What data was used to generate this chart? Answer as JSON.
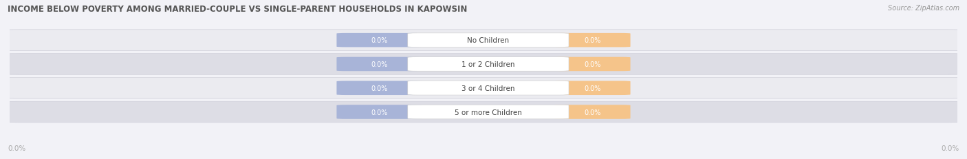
{
  "title": "INCOME BELOW POVERTY AMONG MARRIED-COUPLE VS SINGLE-PARENT HOUSEHOLDS IN KAPOWSIN",
  "source": "Source: ZipAtlas.com",
  "categories": [
    "No Children",
    "1 or 2 Children",
    "3 or 4 Children",
    "5 or more Children"
  ],
  "married_values": [
    "0.0%",
    "0.0%",
    "0.0%",
    "0.0%"
  ],
  "single_values": [
    "0.0%",
    "0.0%",
    "0.0%",
    "0.0%"
  ],
  "married_color": "#a8b4d8",
  "single_color": "#f5c48a",
  "row_bg_light": "#ebebf0",
  "row_bg_dark": "#dddde5",
  "row_outline": "#d0d0da",
  "fig_bg": "#f2f2f7",
  "title_color": "#555555",
  "source_color": "#999999",
  "value_text_color": "#ffffff",
  "category_text_color": "#444444",
  "axis_text_color": "#aaaaaa",
  "legend_text_color": "#555555",
  "title_fontsize": 8.5,
  "source_fontsize": 7.0,
  "category_fontsize": 7.5,
  "value_fontsize": 7.0,
  "legend_fontsize": 7.5,
  "axis_label_fontsize": 7.5,
  "x_tick_label_left": "0.0%",
  "x_tick_label_right": "0.0%"
}
